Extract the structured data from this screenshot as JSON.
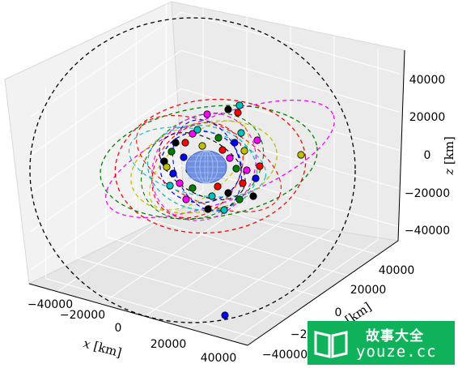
{
  "chart_data": {
    "type": "scatter",
    "title": "",
    "xlabel": "$x$ [km]",
    "ylabel": "$y$ [km]",
    "zlabel": "$z$ [km]",
    "xlim": [
      -50000,
      50000
    ],
    "ylim": [
      -50000,
      50000
    ],
    "zlim": [
      -50000,
      50000
    ],
    "x_ticks": [
      "−40000",
      "−20000",
      "0",
      "20000",
      "40000"
    ],
    "y_ticks": [
      "−40000",
      "−20000",
      "0",
      "20000",
      "40000"
    ],
    "z_ticks": [
      "−40000",
      "−20000",
      "0",
      "20000",
      "40000"
    ],
    "grid": true,
    "central_body": {
      "shape": "sphere",
      "radius": 6371,
      "color": "#6f8fe0"
    },
    "orbits": [
      {
        "color": "#000000",
        "semi_major_km": 42164,
        "style": "dashed"
      },
      {
        "color": "#ff00ff",
        "semi_major_km": 30000,
        "style": "dashed"
      },
      {
        "color": "#008000",
        "semi_major_km": 22000,
        "style": "dashed"
      },
      {
        "color": "#ff0000",
        "semi_major_km": 20000,
        "style": "dashed"
      },
      {
        "color": "#bfbf00",
        "semi_major_km": 16000,
        "style": "dashed"
      },
      {
        "color": "#00bfbf",
        "semi_major_km": 12000,
        "style": "dashed"
      },
      {
        "color": "#0000ff",
        "semi_major_km": 9000,
        "style": "dashed"
      }
    ],
    "satellites": [
      {
        "color": "#0000ff",
        "x": 15000,
        "y": -40000,
        "z": -5000
      }
    ]
  },
  "watermark": {
    "line1": "故事大全",
    "line2": "youze.cc"
  }
}
